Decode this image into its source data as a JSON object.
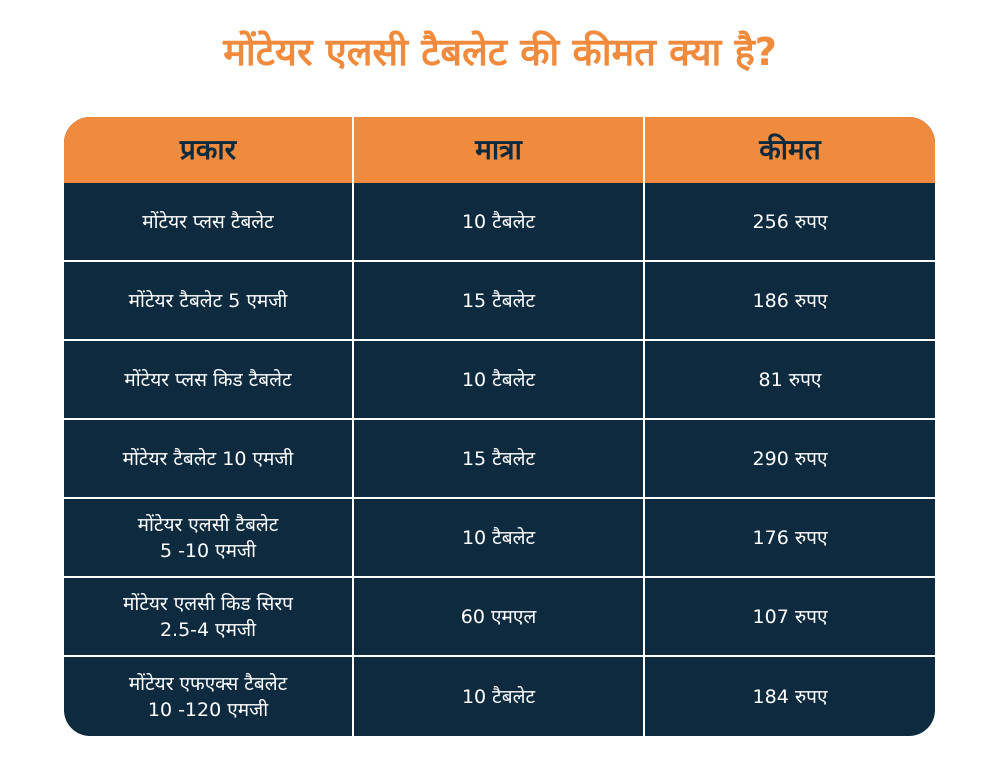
{
  "title": "मोंटेयर एलसी टैबलेट की कीमत क्या है?",
  "colors": {
    "accent": "#F08A3C",
    "table_bg": "#0E2A3F",
    "divider": "#FFFFFF"
  },
  "table": {
    "headers": [
      "प्रकार",
      "मात्रा",
      "कीमत"
    ],
    "rows": [
      {
        "type": "मोंटेयर प्लस टैबलेट",
        "quantity": "10 टैबलेट",
        "price": "256 रुपए"
      },
      {
        "type": "मोंटेयर टैबलेट 5 एमजी",
        "quantity": "15 टैबलेट",
        "price": "186 रुपए"
      },
      {
        "type": "मोंटेयर प्लस किड टैबलेट",
        "quantity": "10 टैबलेट",
        "price": "81 रुपए"
      },
      {
        "type": "मोंटेयर टैबलेट 10 एमजी",
        "quantity": "15 टैबलेट",
        "price": "290 रुपए"
      },
      {
        "type": "मोंटेयर एलसी टैबलेट\n5 -10 एमजी",
        "quantity": "10 टैबलेट",
        "price": "176 रुपए"
      },
      {
        "type": "मोंटेयर एलसी किड सिरप\n2.5-4 एमजी",
        "quantity": "60 एमएल",
        "price": "107 रुपए"
      },
      {
        "type": "मोंटेयर एफएक्स टैबलेट\n10 -120 एमजी",
        "quantity": "10 टैबलेट",
        "price": "184 रुपए"
      }
    ]
  }
}
